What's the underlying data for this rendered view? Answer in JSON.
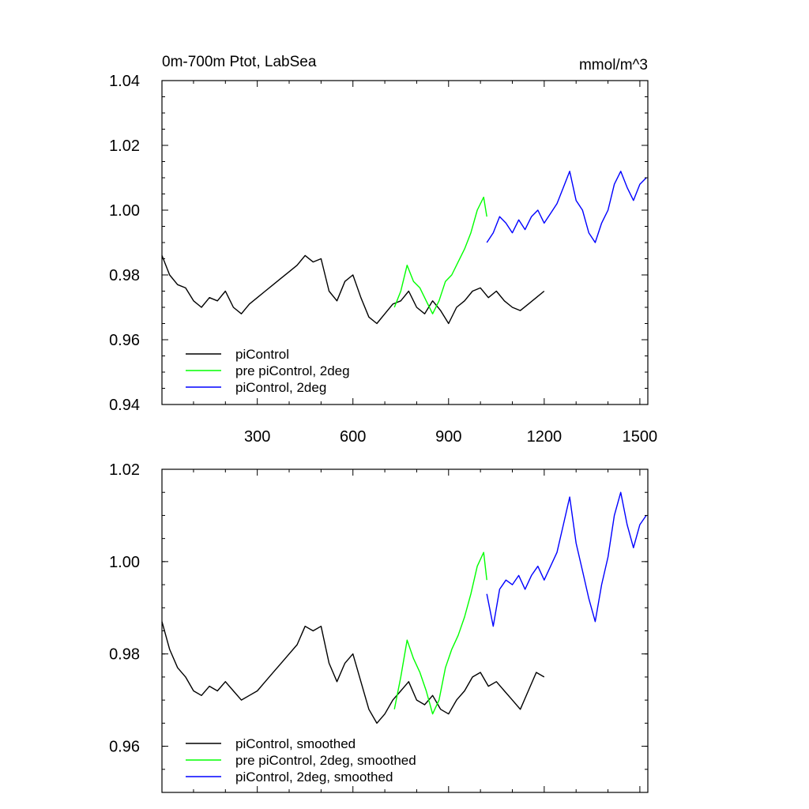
{
  "chart_data": [
    {
      "type": "line",
      "title": "0m-700m Ptot, LabSea",
      "unit": "mmol/m^3",
      "xlim": [
        1,
        1525
      ],
      "ylim": [
        0.94,
        1.04
      ],
      "xticks": [
        300,
        600,
        900,
        1200,
        1500
      ],
      "xtick_labels": [
        "300",
        "600",
        "900",
        "1200",
        "1500"
      ],
      "yticks": [
        0.94,
        0.96,
        0.98,
        1.0,
        1.02,
        1.04
      ],
      "ytick_labels": [
        "0.94",
        "0.96",
        "0.98",
        "1.00",
        "1.02",
        "1.04"
      ],
      "legend": "bottom-left",
      "series": [
        {
          "name": "piControl",
          "color": "#000000",
          "x": [
            1,
            25,
            50,
            75,
            100,
            125,
            150,
            175,
            200,
            225,
            250,
            275,
            300,
            325,
            350,
            375,
            400,
            425,
            450,
            475,
            500,
            525,
            550,
            575,
            600,
            625,
            650,
            675,
            700,
            725,
            750,
            775,
            800,
            825,
            850,
            875,
            900,
            925,
            950,
            975,
            1000,
            1025,
            1050,
            1075,
            1100,
            1125,
            1150,
            1175,
            1200
          ],
          "y": [
            0.986,
            0.98,
            0.977,
            0.976,
            0.972,
            0.97,
            0.973,
            0.972,
            0.975,
            0.97,
            0.968,
            0.971,
            0.973,
            0.975,
            0.977,
            0.979,
            0.981,
            0.983,
            0.986,
            0.984,
            0.985,
            0.975,
            0.972,
            0.978,
            0.98,
            0.973,
            0.967,
            0.965,
            0.968,
            0.971,
            0.972,
            0.975,
            0.97,
            0.968,
            0.972,
            0.969,
            0.965,
            0.97,
            0.972,
            0.975,
            0.976,
            0.973,
            0.975,
            0.972,
            0.97,
            0.969,
            0.971,
            0.973,
            0.975
          ]
        },
        {
          "name": "pre piControl, 2deg",
          "color": "#00ff00",
          "x": [
            730,
            750,
            770,
            790,
            810,
            830,
            850,
            870,
            890,
            910,
            930,
            950,
            970,
            990,
            1010,
            1020
          ],
          "y": [
            0.97,
            0.975,
            0.983,
            0.978,
            0.976,
            0.972,
            0.968,
            0.972,
            0.978,
            0.98,
            0.984,
            0.988,
            0.993,
            1.0,
            1.004,
            0.998
          ]
        },
        {
          "name": "piControl, 2deg",
          "color": "#0000ff",
          "x": [
            1020,
            1040,
            1060,
            1080,
            1100,
            1120,
            1140,
            1160,
            1180,
            1200,
            1220,
            1240,
            1260,
            1280,
            1300,
            1320,
            1340,
            1360,
            1380,
            1400,
            1420,
            1440,
            1460,
            1480,
            1500,
            1520
          ],
          "y": [
            0.99,
            0.993,
            0.998,
            0.996,
            0.993,
            0.997,
            0.994,
            0.998,
            1.0,
            0.996,
            0.999,
            1.002,
            1.007,
            1.012,
            1.003,
            1.0,
            0.993,
            0.99,
            0.996,
            1.0,
            1.008,
            1.012,
            1.007,
            1.003,
            1.008,
            1.01
          ]
        }
      ]
    },
    {
      "type": "line",
      "xlim": [
        1,
        1525
      ],
      "ylim": [
        0.95,
        1.02
      ],
      "xticks": [
        300,
        600,
        900,
        1200,
        1500
      ],
      "yticks": [
        0.96,
        0.98,
        1.0,
        1.02
      ],
      "ytick_labels": [
        "0.96",
        "0.98",
        "1.00",
        "1.02"
      ],
      "legend": "bottom-left",
      "series": [
        {
          "name": "piControl, smoothed",
          "color": "#000000",
          "x": [
            1,
            25,
            50,
            75,
            100,
            125,
            150,
            175,
            200,
            225,
            250,
            275,
            300,
            325,
            350,
            375,
            400,
            425,
            450,
            475,
            500,
            525,
            550,
            575,
            600,
            625,
            650,
            675,
            700,
            725,
            750,
            775,
            800,
            825,
            850,
            875,
            900,
            925,
            950,
            975,
            1000,
            1025,
            1050,
            1075,
            1100,
            1125,
            1150,
            1175,
            1200
          ],
          "y": [
            0.987,
            0.981,
            0.977,
            0.975,
            0.972,
            0.971,
            0.973,
            0.972,
            0.974,
            0.972,
            0.97,
            0.971,
            0.972,
            0.974,
            0.976,
            0.978,
            0.98,
            0.982,
            0.986,
            0.985,
            0.986,
            0.978,
            0.974,
            0.978,
            0.98,
            0.974,
            0.968,
            0.965,
            0.967,
            0.97,
            0.972,
            0.974,
            0.97,
            0.969,
            0.971,
            0.968,
            0.967,
            0.97,
            0.972,
            0.975,
            0.976,
            0.973,
            0.974,
            0.972,
            0.97,
            0.968,
            0.972,
            0.976,
            0.975
          ]
        },
        {
          "name": "pre piControl, 2deg, smoothed",
          "color": "#00ff00",
          "x": [
            730,
            750,
            770,
            790,
            810,
            830,
            850,
            870,
            890,
            910,
            930,
            950,
            970,
            990,
            1010,
            1020
          ],
          "y": [
            0.968,
            0.975,
            0.983,
            0.979,
            0.976,
            0.972,
            0.967,
            0.97,
            0.977,
            0.981,
            0.984,
            0.988,
            0.993,
            0.999,
            1.002,
            0.996
          ]
        },
        {
          "name": "piControl, 2deg, smoothed",
          "color": "#0000ff",
          "x": [
            1020,
            1040,
            1060,
            1080,
            1100,
            1120,
            1140,
            1160,
            1180,
            1200,
            1220,
            1240,
            1260,
            1280,
            1300,
            1320,
            1340,
            1360,
            1380,
            1400,
            1420,
            1440,
            1460,
            1480,
            1500,
            1520
          ],
          "y": [
            0.993,
            0.986,
            0.994,
            0.996,
            0.995,
            0.997,
            0.994,
            0.997,
            0.999,
            0.996,
            0.999,
            1.002,
            1.008,
            1.014,
            1.004,
            0.998,
            0.992,
            0.987,
            0.995,
            1.001,
            1.01,
            1.015,
            1.008,
            1.003,
            1.008,
            1.01
          ]
        }
      ]
    }
  ]
}
